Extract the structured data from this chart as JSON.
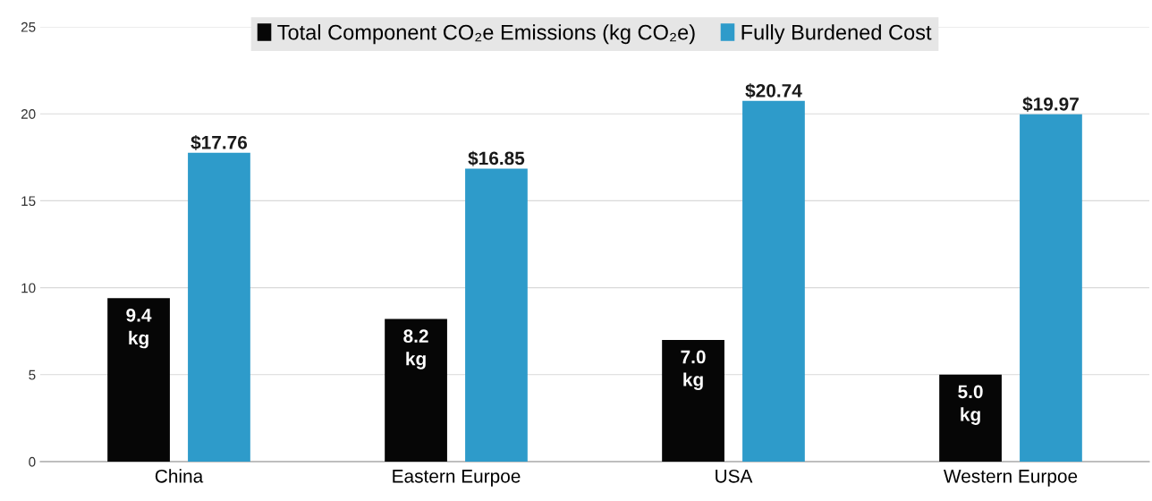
{
  "chart_data": {
    "type": "bar",
    "categories": [
      "China",
      "Eastern Eurpoe",
      "USA",
      "Western Eurpoe"
    ],
    "series": [
      {
        "name": "Total Component CO₂e Emissions (kg CO₂e)",
        "color": "#060606",
        "values": [
          9.4,
          8.2,
          7.0,
          5.0
        ],
        "value_labels": [
          "9.4\nkg",
          "8.2\nkg",
          "7.0\nkg",
          "5.0\nkg"
        ]
      },
      {
        "name": "Fully Burdened Cost",
        "color": "#2e9bca",
        "values": [
          17.76,
          16.85,
          20.74,
          19.97
        ],
        "value_labels": [
          "$17.76",
          "$16.85",
          "$20.74",
          "$19.97"
        ]
      }
    ],
    "ylim": [
      0,
      25
    ],
    "yticks": [
      0,
      5,
      10,
      15,
      20,
      25
    ],
    "grid": "y",
    "legend": "top"
  }
}
